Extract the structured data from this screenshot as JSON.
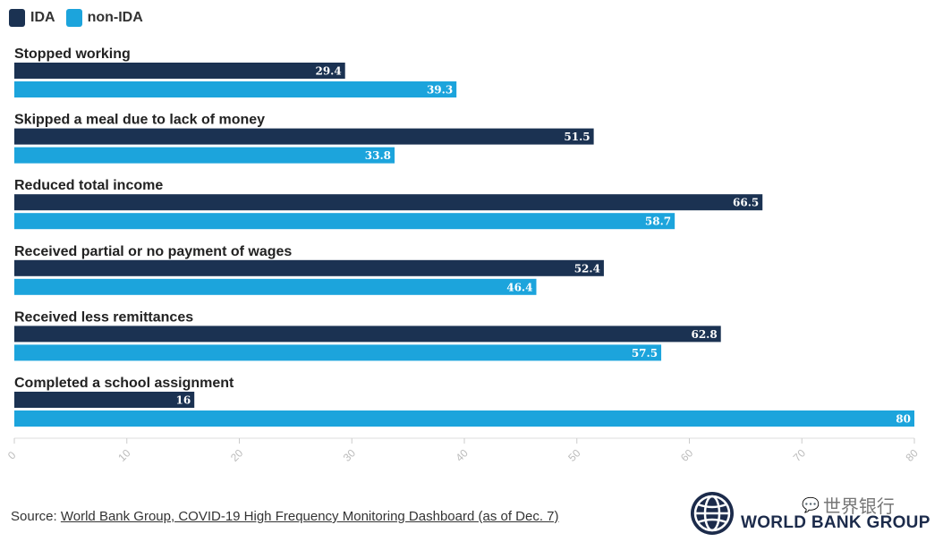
{
  "legend": [
    {
      "label": "IDA",
      "color": "#1b3252"
    },
    {
      "label": "non-IDA",
      "color": "#1ca4dc"
    }
  ],
  "chart_data": {
    "type": "bar",
    "orientation": "horizontal",
    "categories": [
      "Stopped working",
      "Skipped a meal due to lack of money",
      "Reduced total income",
      "Received partial or no payment of wages",
      "Received less remittances",
      "Completed a school assignment"
    ],
    "series": [
      {
        "name": "IDA",
        "color": "#1b3252",
        "values": [
          29.4,
          51.5,
          66.5,
          52.4,
          62.8,
          16
        ]
      },
      {
        "name": "non-IDA",
        "color": "#1ca4dc",
        "values": [
          39.3,
          33.8,
          58.7,
          46.4,
          57.5,
          80
        ]
      }
    ],
    "value_labels": [
      [
        "29.4",
        "51.5",
        "66.5",
        "52.4",
        "62.8",
        "16"
      ],
      [
        "39.3",
        "33.8",
        "58.7",
        "46.4",
        "57.5",
        "80"
      ]
    ],
    "xlim": [
      0,
      80
    ],
    "xticks": [
      "0",
      "10",
      "20",
      "30",
      "40",
      "50",
      "60",
      "70",
      "80"
    ],
    "tick_values": [
      0,
      10,
      20,
      30,
      40,
      50,
      60,
      70,
      80
    ],
    "grid": false,
    "legend_position": "top-left"
  },
  "source": {
    "prefix": "Source: ",
    "link_text": "World Bank Group, COVID-19 High Frequency Monitoring Dashboard (as of Dec. 7)"
  },
  "watermark": {
    "text": "世界银行",
    "icon": "wechat-icon"
  },
  "logo": {
    "text": "WORLD BANK GROUP",
    "icon": "globe-icon"
  }
}
